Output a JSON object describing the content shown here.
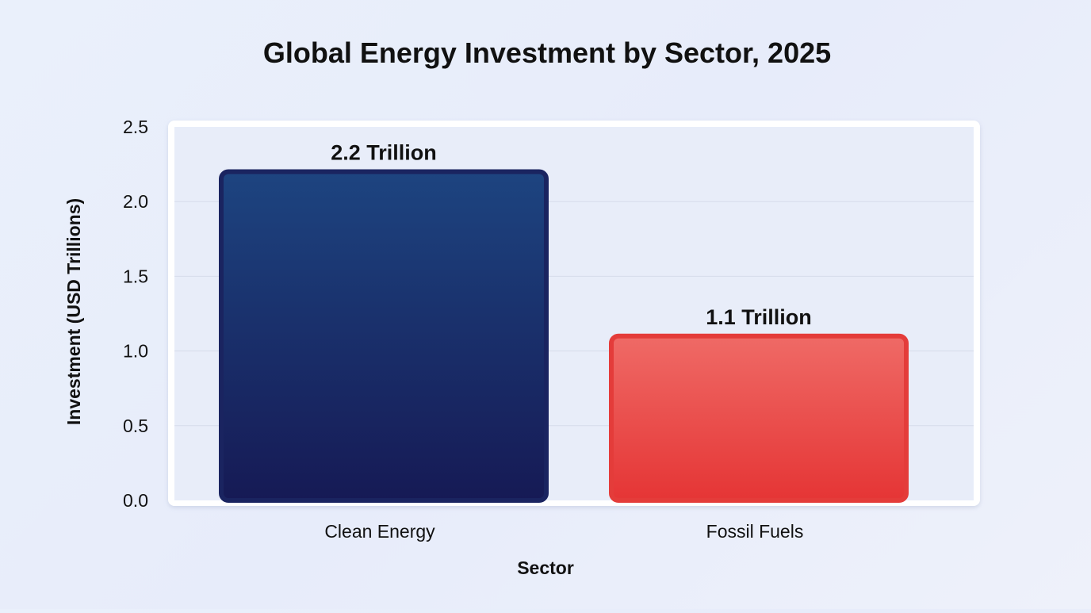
{
  "chart_data": {
    "type": "bar",
    "title": "Global Energy Investment by Sector, 2025",
    "xlabel": "Sector",
    "ylabel": "Investment (USD Trillions)",
    "categories": [
      "Clean Energy",
      "Fossil Fuels"
    ],
    "values": [
      2.2,
      1.1
    ],
    "data_labels": [
      "2.2 Trillion",
      "1.1 Trillion"
    ],
    "ylim": [
      0,
      2.5
    ],
    "yticks": [
      "0.0",
      "0.5",
      "1.0",
      "1.5",
      "2.0",
      "2.5"
    ],
    "grid": true,
    "legend": "none",
    "colors": {
      "clean_energy_top": "#1d4480",
      "clean_energy_bottom": "#161a55",
      "clean_energy_border": "#1a2460",
      "fossil_fuels_top": "#ef6a66",
      "fossil_fuels_bottom": "#e53535",
      "fossil_fuels_border": "#e43c3a",
      "gridline": "#d6dcea",
      "plot_background": "#e8edf9",
      "plot_frame": "#ffffff",
      "text": "#111111"
    }
  }
}
